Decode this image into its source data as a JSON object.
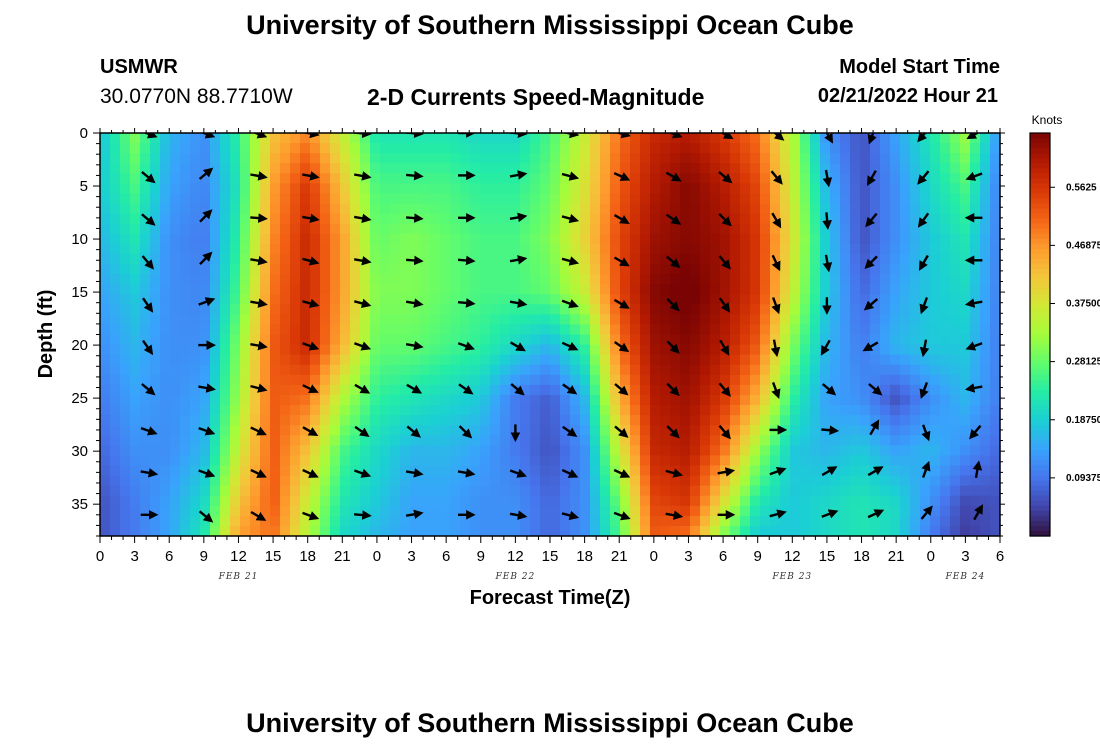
{
  "header": {
    "title": "University of Southern Mississippi Ocean Cube",
    "station": "USMWR",
    "coords": "30.0770N  88.7710W",
    "subtitle": "2-D Currents Speed-Magnitude",
    "model_start_label": "Model Start Time",
    "model_start_value": "02/21/2022 Hour 21"
  },
  "footer": {
    "title": "University of Southern Mississippi Ocean Cube"
  },
  "chart_data": {
    "type": "heatmap",
    "title": "2-D Currents Speed-Magnitude",
    "xlabel": "Forecast Time(Z)",
    "ylabel": "Depth (ft)",
    "x_tick_labels": [
      "0",
      "3",
      "6",
      "9",
      "12",
      "15",
      "18",
      "21",
      "0",
      "3",
      "6",
      "9",
      "12",
      "15",
      "18",
      "21",
      "0",
      "3",
      "6",
      "9",
      "12",
      "15",
      "18",
      "21",
      "0",
      "3",
      "6"
    ],
    "x_tick_hours": [
      0,
      3,
      6,
      9,
      12,
      15,
      18,
      21,
      24,
      27,
      30,
      33,
      36,
      39,
      42,
      45,
      48,
      51,
      54,
      57,
      60,
      63,
      66,
      69,
      72,
      75,
      78
    ],
    "x_range_hours": [
      0,
      78
    ],
    "date_labels": [
      {
        "text": "FEB 21",
        "hour": 12
      },
      {
        "text": "FEB 22",
        "hour": 36
      },
      {
        "text": "FEB 23",
        "hour": 60
      },
      {
        "text": "FEB 24",
        "hour": 75
      }
    ],
    "y_ticks": [
      0,
      5,
      10,
      15,
      20,
      25,
      30,
      35
    ],
    "y_range_ft": [
      0,
      38
    ],
    "y_inverted": true,
    "colorbar": {
      "unit": "Knots",
      "range": [
        0,
        0.65
      ],
      "tick_values": [
        0.5625,
        0.46875,
        0.375,
        0.28125,
        0.1875,
        0.09375
      ],
      "tick_labels": [
        "0.5625",
        "0.46875",
        "0.37500",
        "0.28125",
        "0.18750",
        "0.09375"
      ],
      "palette": [
        "#30123b",
        "#4145ab",
        "#4675ed",
        "#39a2fc",
        "#1bcfd4",
        "#24eca6",
        "#61fc6c",
        "#a4fc3b",
        "#d1e834",
        "#f3c63a",
        "#fe9b2d",
        "#f36315",
        "#d93806",
        "#b11901",
        "#7a0403"
      ]
    },
    "speed_time_hours": [
      0,
      3,
      6,
      9,
      12,
      15,
      18,
      21,
      24,
      27,
      30,
      33,
      36,
      39,
      42,
      45,
      48,
      51,
      54,
      57,
      60,
      63,
      66,
      69,
      72,
      75,
      78
    ],
    "speed_depths_ft": [
      0,
      5,
      10,
      15,
      20,
      25,
      30,
      35,
      38
    ],
    "speed_knots": [
      [
        0.17,
        0.3,
        0.16,
        0.12,
        0.24,
        0.42,
        0.48,
        0.36,
        0.22,
        0.22,
        0.22,
        0.2,
        0.2,
        0.26,
        0.36,
        0.5,
        0.58,
        0.6,
        0.56,
        0.5,
        0.34,
        0.12,
        0.06,
        0.14,
        0.22,
        0.32,
        0.12
      ],
      [
        0.18,
        0.26,
        0.14,
        0.11,
        0.22,
        0.46,
        0.56,
        0.42,
        0.26,
        0.26,
        0.26,
        0.24,
        0.24,
        0.28,
        0.38,
        0.52,
        0.6,
        0.64,
        0.6,
        0.54,
        0.36,
        0.16,
        0.06,
        0.12,
        0.2,
        0.26,
        0.1
      ],
      [
        0.16,
        0.22,
        0.12,
        0.1,
        0.24,
        0.48,
        0.58,
        0.46,
        0.28,
        0.3,
        0.28,
        0.26,
        0.26,
        0.3,
        0.4,
        0.54,
        0.62,
        0.64,
        0.62,
        0.56,
        0.38,
        0.18,
        0.06,
        0.12,
        0.18,
        0.22,
        0.1
      ],
      [
        0.14,
        0.18,
        0.12,
        0.11,
        0.26,
        0.5,
        0.58,
        0.46,
        0.3,
        0.3,
        0.28,
        0.26,
        0.26,
        0.28,
        0.36,
        0.54,
        0.64,
        0.66,
        0.62,
        0.56,
        0.36,
        0.18,
        0.08,
        0.14,
        0.18,
        0.2,
        0.1
      ],
      [
        0.12,
        0.16,
        0.12,
        0.12,
        0.3,
        0.52,
        0.58,
        0.44,
        0.28,
        0.28,
        0.26,
        0.24,
        0.2,
        0.16,
        0.24,
        0.5,
        0.62,
        0.64,
        0.6,
        0.52,
        0.3,
        0.16,
        0.1,
        0.16,
        0.18,
        0.18,
        0.1
      ],
      [
        0.1,
        0.14,
        0.12,
        0.14,
        0.32,
        0.52,
        0.5,
        0.34,
        0.24,
        0.22,
        0.2,
        0.18,
        0.1,
        0.07,
        0.16,
        0.44,
        0.6,
        0.62,
        0.56,
        0.44,
        0.24,
        0.14,
        0.12,
        0.06,
        0.12,
        0.16,
        0.1
      ],
      [
        0.08,
        0.12,
        0.12,
        0.16,
        0.36,
        0.52,
        0.42,
        0.26,
        0.2,
        0.16,
        0.16,
        0.14,
        0.1,
        0.06,
        0.12,
        0.36,
        0.58,
        0.6,
        0.5,
        0.32,
        0.18,
        0.16,
        0.18,
        0.14,
        0.16,
        0.12,
        0.08
      ],
      [
        0.06,
        0.1,
        0.14,
        0.2,
        0.42,
        0.52,
        0.36,
        0.22,
        0.18,
        0.14,
        0.14,
        0.12,
        0.12,
        0.08,
        0.12,
        0.28,
        0.54,
        0.56,
        0.38,
        0.22,
        0.18,
        0.2,
        0.22,
        0.2,
        0.12,
        0.05,
        0.06
      ],
      [
        0.06,
        0.1,
        0.14,
        0.22,
        0.46,
        0.5,
        0.34,
        0.2,
        0.16,
        0.14,
        0.14,
        0.12,
        0.12,
        0.08,
        0.12,
        0.26,
        0.52,
        0.5,
        0.3,
        0.18,
        0.18,
        0.2,
        0.22,
        0.2,
        0.1,
        0.04,
        0.06
      ]
    ],
    "vector_time_hours": [
      4,
      9,
      13.5,
      18,
      22.5,
      27,
      31.5,
      36,
      40.5,
      45,
      49.5,
      54,
      58.5,
      63,
      67,
      71.5,
      76
    ],
    "vector_depths_ft": [
      0,
      4,
      8,
      12,
      16,
      20,
      24,
      28,
      32,
      36
    ],
    "vector_direction_deg": [
      [
        110,
        110,
        110,
        100,
        95,
        95,
        90,
        95,
        100,
        105,
        110,
        120,
        130,
        150,
        200,
        220,
        240
      ],
      [
        130,
        50,
        100,
        100,
        100,
        95,
        90,
        80,
        105,
        115,
        120,
        130,
        140,
        170,
        210,
        220,
        250
      ],
      [
        130,
        45,
        95,
        100,
        100,
        95,
        90,
        80,
        105,
        120,
        125,
        135,
        150,
        175,
        220,
        215,
        270
      ],
      [
        140,
        45,
        100,
        105,
        100,
        95,
        95,
        80,
        105,
        120,
        130,
        140,
        155,
        170,
        225,
        210,
        270
      ],
      [
        145,
        70,
        100,
        105,
        105,
        100,
        95,
        100,
        110,
        120,
        135,
        145,
        160,
        180,
        230,
        200,
        260
      ],
      [
        145,
        90,
        100,
        110,
        110,
        100,
        110,
        120,
        115,
        125,
        135,
        150,
        170,
        210,
        240,
        190,
        250
      ],
      [
        130,
        100,
        105,
        115,
        120,
        120,
        125,
        130,
        125,
        130,
        135,
        140,
        160,
        130,
        130,
        200,
        260
      ],
      [
        110,
        110,
        115,
        120,
        125,
        130,
        135,
        180,
        125,
        130,
        135,
        140,
        90,
        95,
        30,
        160,
        220
      ],
      [
        100,
        110,
        115,
        115,
        110,
        100,
        100,
        110,
        115,
        115,
        105,
        80,
        70,
        60,
        60,
        20,
        10
      ],
      [
        90,
        130,
        120,
        110,
        95,
        80,
        90,
        100,
        105,
        110,
        100,
        90,
        75,
        70,
        65,
        40,
        30
      ]
    ]
  }
}
